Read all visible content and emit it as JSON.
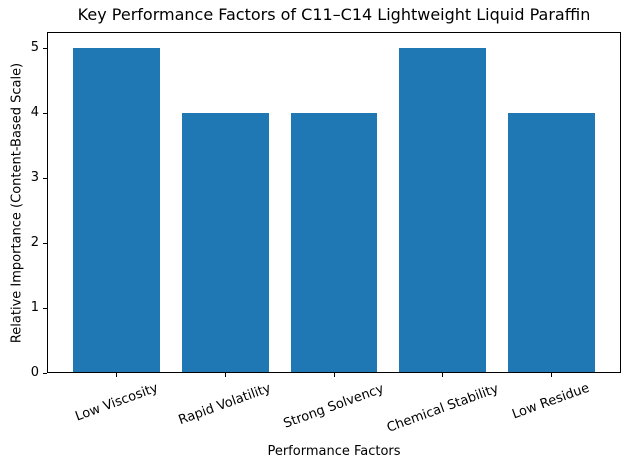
{
  "chart_data": {
    "type": "bar",
    "title": "Key Performance Factors of C11–C14 Lightweight Liquid Paraffin",
    "categories": [
      "Low Viscosity",
      "Rapid Volatility",
      "Strong Solvency",
      "Chemical Stability",
      "Low Residue"
    ],
    "values": [
      5,
      4,
      4,
      5,
      4
    ],
    "xlabel": "Performance Factors",
    "ylabel": "Relative Importance (Content-Based Scale)",
    "yticks": [
      0,
      1,
      2,
      3,
      4,
      5
    ],
    "ylim": [
      0,
      5.25
    ],
    "xlim": [
      -0.64,
      4.64
    ],
    "bar_width": 0.8,
    "xtick_rotation_deg": 20,
    "grid": false,
    "legend": "none",
    "colors": {
      "bar": "#1f77b4",
      "text": "#000000",
      "spine": "#000000",
      "background": "#ffffff"
    }
  }
}
